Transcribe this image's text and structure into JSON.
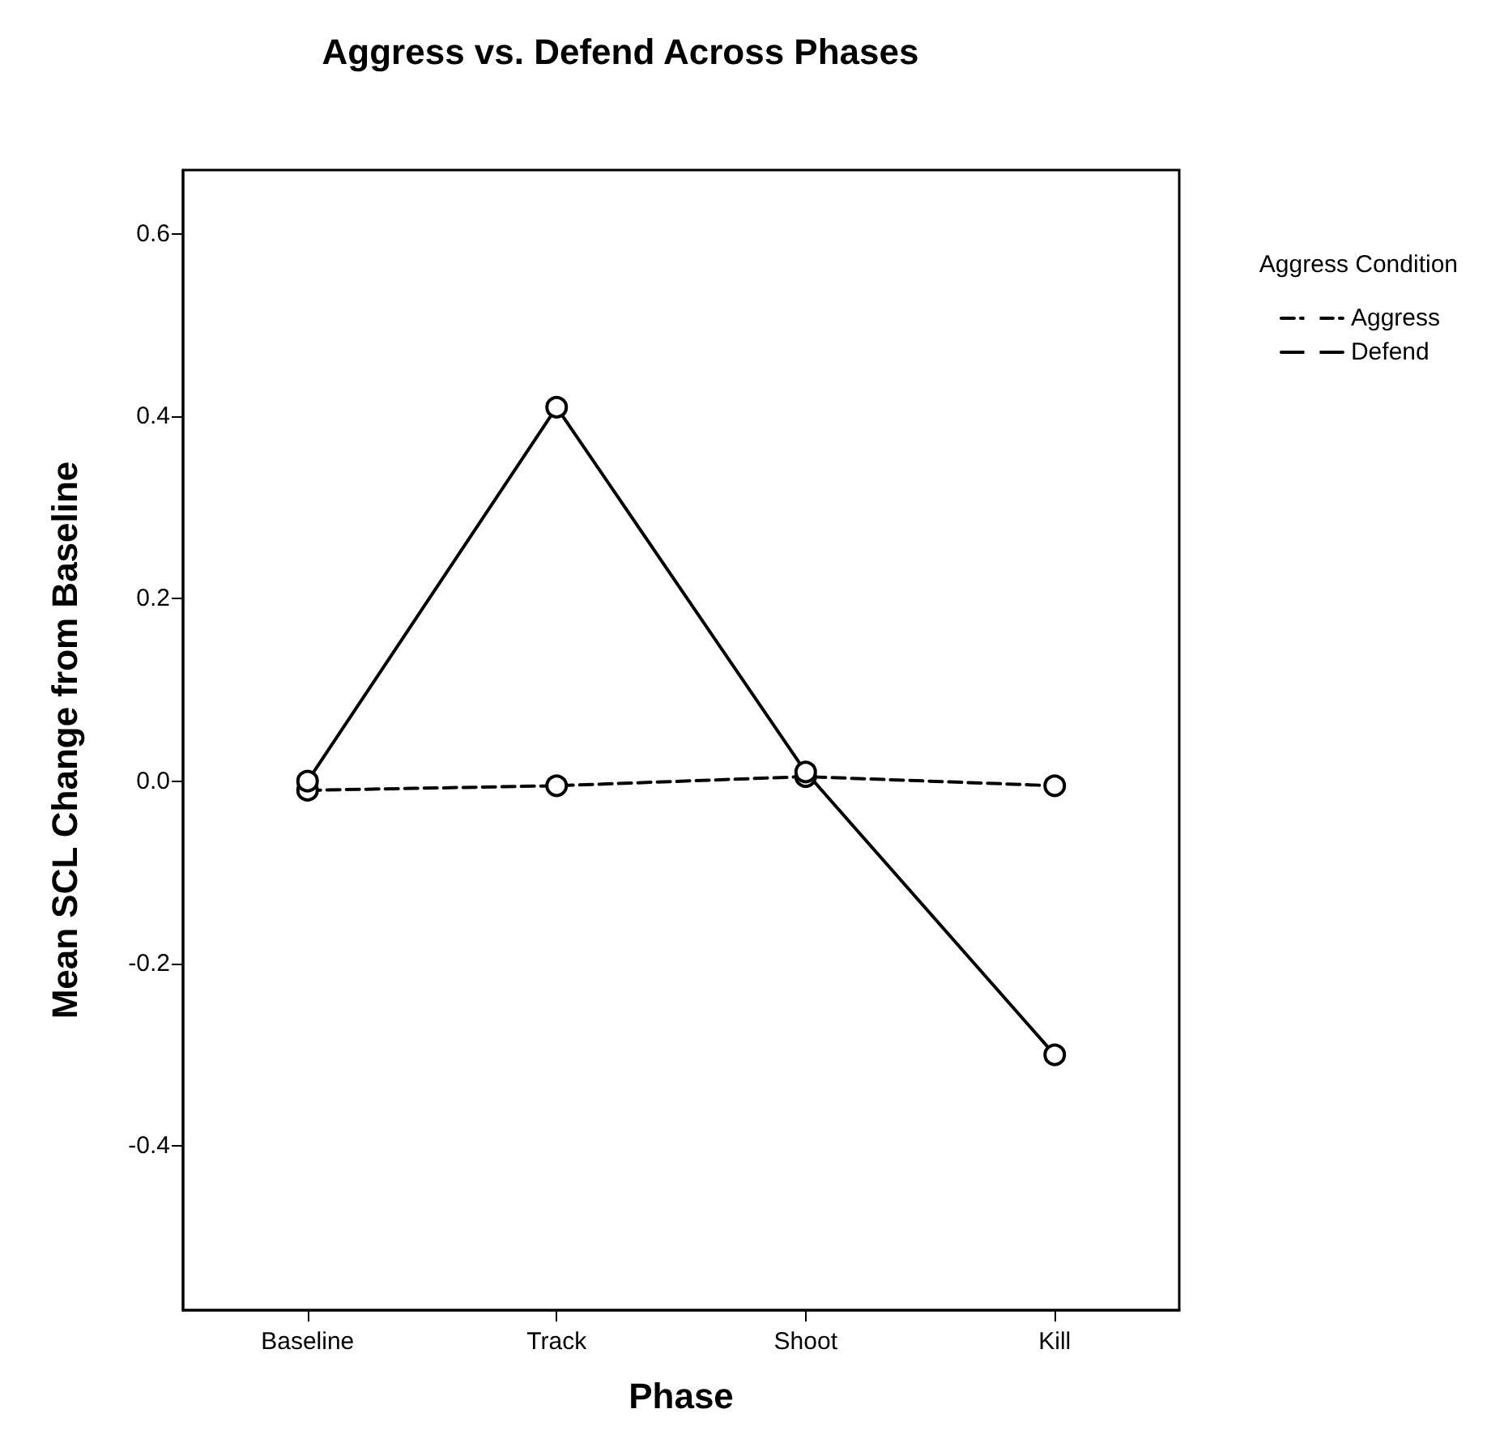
{
  "chart_data": {
    "type": "line",
    "title": "Aggress vs. Defend Across Phases",
    "xlabel": "Phase",
    "ylabel": "Mean SCL Change from Baseline",
    "legend_title": "Aggress Condition",
    "categories": [
      "Baseline",
      "Track",
      "Shoot",
      "Kill"
    ],
    "series": [
      {
        "name": "Aggress",
        "color": "#000000",
        "line_style": "dashed",
        "values": [
          -0.01,
          -0.005,
          0.005,
          -0.005
        ]
      },
      {
        "name": "Defend",
        "color": "#000000",
        "line_style": "solid",
        "values": [
          0.0,
          0.41,
          0.01,
          -0.3
        ]
      }
    ],
    "ylim": [
      -0.58,
      0.67
    ],
    "yticks": [
      {
        "value": -0.4,
        "label": "-0.4"
      },
      {
        "value": -0.2,
        "label": "-0.2"
      },
      {
        "value": 0,
        "label": "0.0"
      },
      {
        "value": 0.2,
        "label": "0.2"
      },
      {
        "value": 0.4,
        "label": "0.4"
      },
      {
        "value": 0.6,
        "label": "0.6"
      }
    ],
    "marker": "circle",
    "grid": false,
    "legend": "top right"
  }
}
